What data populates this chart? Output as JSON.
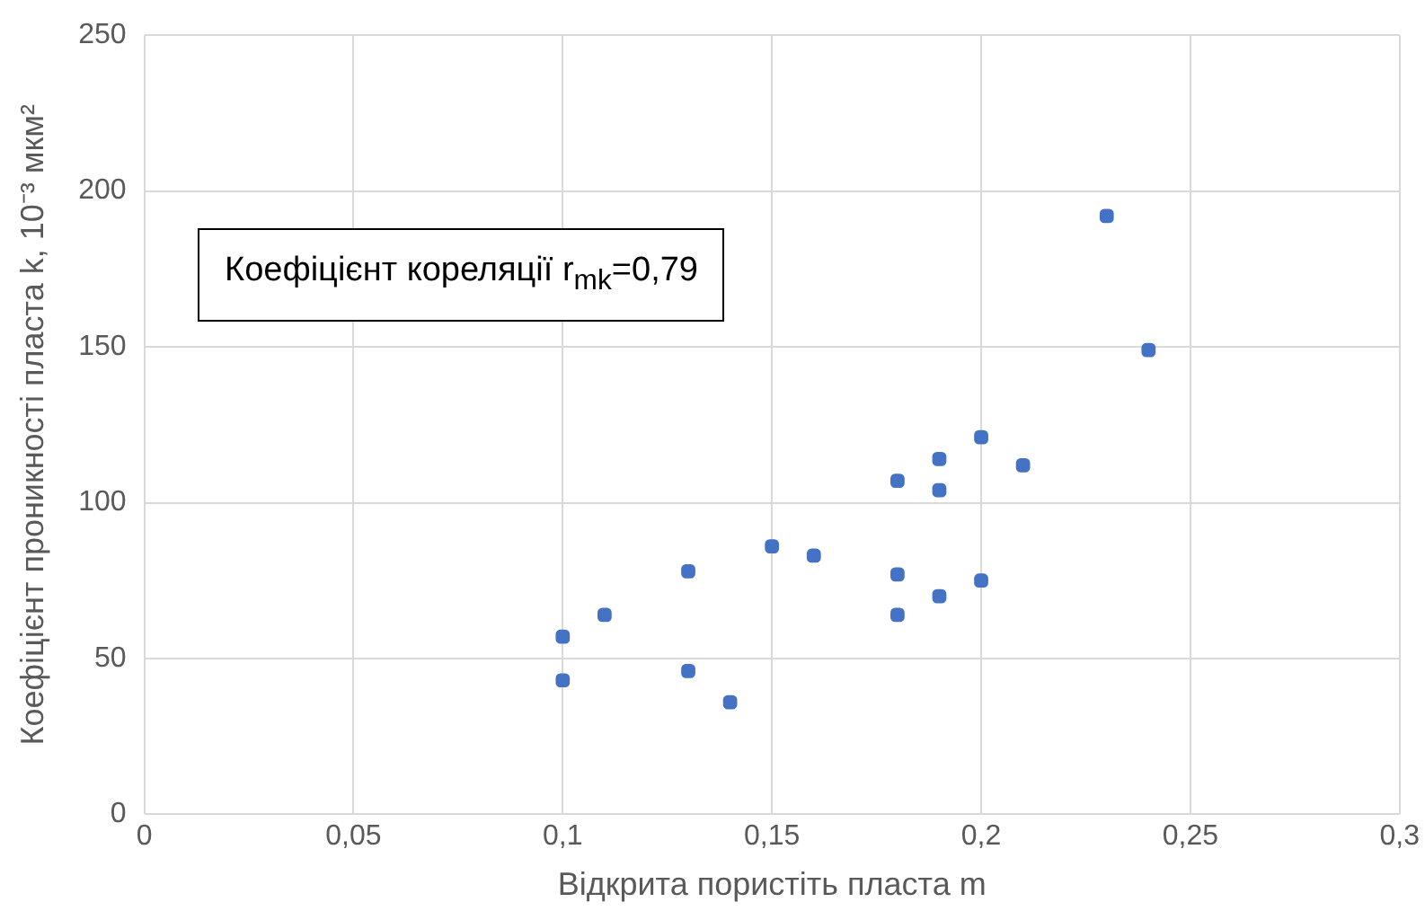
{
  "chart_data": {
    "type": "scatter",
    "xlabel": "Відкрита пористіть пласта m",
    "ylabel": "Коефіцієнт проникності пласта k, 10⁻³ мкм²",
    "annotations": [
      "Коефіцієнт кореляції r$_{mk}$=0,79"
    ],
    "x": [
      0.1,
      0.1,
      0.11,
      0.13,
      0.13,
      0.14,
      0.15,
      0.16,
      0.18,
      0.18,
      0.18,
      0.19,
      0.19,
      0.19,
      0.2,
      0.2,
      0.21,
      0.23,
      0.24
    ],
    "series": [
      {
        "color": "#4472c4",
        "values": [
          57,
          43,
          64,
          78,
          46,
          36,
          86,
          83,
          107,
          77,
          64,
          114,
          104,
          70,
          121,
          75,
          112,
          192,
          149
        ]
      }
    ],
    "xlim": [
      0,
      0.3
    ],
    "xticks": [
      {
        "value": 0,
        "label": "0"
      },
      {
        "value": 0.05,
        "label": "0,05"
      },
      {
        "value": 0.1,
        "label": "0,1"
      },
      {
        "value": 0.15,
        "label": "0,15"
      },
      {
        "value": 0.2,
        "label": "0,2"
      },
      {
        "value": 0.25,
        "label": "0,25"
      },
      {
        "value": 0.3,
        "label": "0,3"
      }
    ],
    "ylim": [
      0,
      250
    ],
    "yticks": [
      0,
      50,
      100,
      150,
      200,
      250
    ],
    "grid": true,
    "legend": false,
    "marker": "square"
  }
}
